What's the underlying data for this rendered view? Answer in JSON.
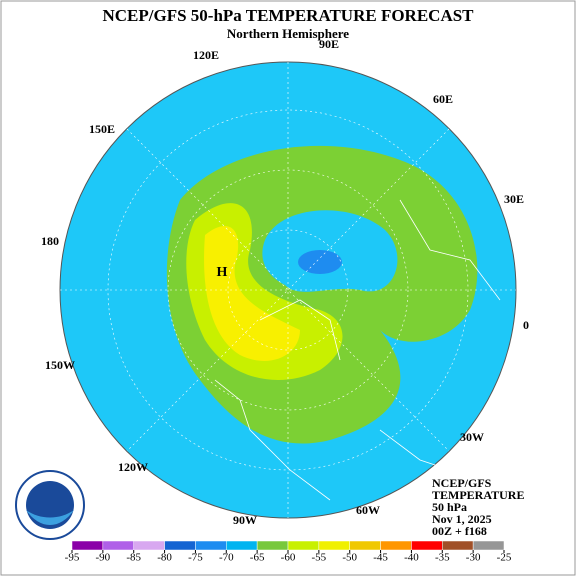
{
  "title": "NCEP/GFS 50-hPa TEMPERATURE FORECAST",
  "subtitle": "Northern Hemisphere",
  "longitude_labels": [
    "90E",
    "120E",
    "60E",
    "150E",
    "30E",
    "180",
    "0",
    "150W",
    "30W",
    "120W",
    "60W",
    "90W"
  ],
  "high_marker": "H",
  "info": [
    "NCEP/GFS",
    "TEMPERATURE",
    "50 hPa",
    "Nov 1, 2025",
    "00Z + f168"
  ],
  "colorbar": {
    "ticks": [
      -95,
      -90,
      -85,
      -80,
      -75,
      -70,
      -65,
      -60,
      -55,
      -50,
      -45,
      -40,
      -35,
      -30,
      -25
    ],
    "colors": [
      "#8a00a8",
      "#b060e8",
      "#d8a8f0",
      "#1464d2",
      "#1e8cf0",
      "#00b4f0",
      "#78c83c",
      "#c8f000",
      "#f0f000",
      "#f0c800",
      "#ff9600",
      "#ff0000",
      "#a05028",
      "#969696"
    ]
  }
}
